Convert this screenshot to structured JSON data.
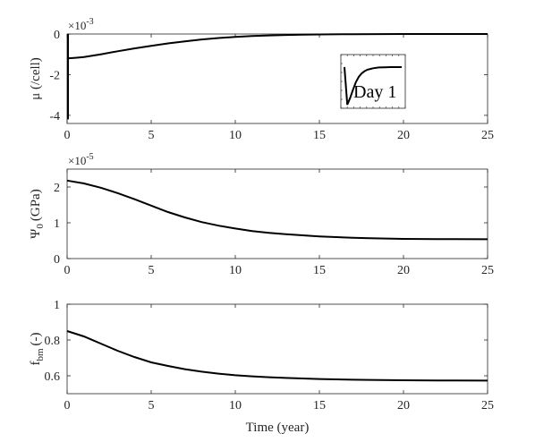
{
  "chart_data": [
    {
      "type": "line",
      "ylabel": "μ (/cell)",
      "multiplier": "×10",
      "exponent": "-3",
      "xlim": [
        0,
        25
      ],
      "ylim": [
        -4.4,
        0
      ],
      "x_ticks": [
        "0",
        "5",
        "10",
        "15",
        "20",
        "25"
      ],
      "y_ticks": [
        {
          "value": 0,
          "label": "0"
        },
        {
          "value": -2,
          "label": "-2"
        },
        {
          "value": -4,
          "label": "-4"
        }
      ],
      "series": [
        {
          "x": [
            0,
            0.5,
            1,
            2,
            3,
            4,
            5,
            6,
            7,
            8,
            9,
            10,
            11,
            12,
            13,
            14,
            15,
            17,
            20,
            25
          ],
          "y": [
            -1.2,
            -1.17,
            -1.13,
            -1.0,
            -0.85,
            -0.71,
            -0.58,
            -0.46,
            -0.36,
            -0.27,
            -0.2,
            -0.14,
            -0.1,
            -0.07,
            -0.05,
            -0.03,
            -0.02,
            -0.01,
            0,
            0
          ]
        }
      ],
      "initial_transient": {
        "x": 0,
        "y_from": -4.2,
        "y_to": 0
      },
      "inset": {
        "label": "Day 1",
        "series_x": [
          0,
          0.05,
          0.1,
          0.15,
          0.2,
          0.25,
          0.3,
          0.35,
          0.4,
          0.45,
          0.5,
          0.6,
          0.7,
          0.8,
          0.9,
          1.0
        ],
        "series_y": [
          0.0,
          -1.0,
          -0.82,
          -0.6,
          -0.4,
          -0.26,
          -0.17,
          -0.11,
          -0.07,
          -0.05,
          -0.03,
          -0.01,
          -0.005,
          0,
          0,
          0
        ]
      }
    },
    {
      "type": "line",
      "ylabel": "Ψ",
      "ylabel_sub": "0",
      "ylabel_unit": "(GPa)",
      "multiplier": "×10",
      "exponent": "-5",
      "xlim": [
        0,
        25
      ],
      "ylim": [
        0,
        2.5
      ],
      "x_ticks": [
        "0",
        "5",
        "10",
        "15",
        "20",
        "25"
      ],
      "y_ticks": [
        {
          "value": 0,
          "label": "0"
        },
        {
          "value": 1,
          "label": "1"
        },
        {
          "value": 2,
          "label": "2"
        }
      ],
      "series": [
        {
          "x": [
            0,
            1,
            2,
            3,
            4,
            5,
            6,
            7,
            8,
            9,
            10,
            11,
            12,
            13,
            14,
            15,
            16,
            17,
            18,
            19,
            20,
            22,
            25
          ],
          "y": [
            2.18,
            2.1,
            1.98,
            1.83,
            1.66,
            1.48,
            1.3,
            1.15,
            1.02,
            0.92,
            0.84,
            0.77,
            0.72,
            0.68,
            0.65,
            0.62,
            0.6,
            0.58,
            0.57,
            0.56,
            0.55,
            0.545,
            0.54
          ]
        }
      ]
    },
    {
      "type": "line",
      "ylabel": "f",
      "ylabel_sub": "bm",
      "ylabel_unit": "(-)",
      "xlabel": "Time (year)",
      "xlim": [
        0,
        25
      ],
      "ylim": [
        0.5,
        1.0
      ],
      "x_ticks": [
        "0",
        "5",
        "10",
        "15",
        "20",
        "25"
      ],
      "y_ticks": [
        {
          "value": 0.6,
          "label": "0.6"
        },
        {
          "value": 0.8,
          "label": "0.8"
        },
        {
          "value": 1.0,
          "label": "1"
        }
      ],
      "series": [
        {
          "x": [
            0,
            1,
            2,
            3,
            4,
            5,
            6,
            7,
            8,
            9,
            10,
            11,
            12,
            13,
            14,
            15,
            16,
            17,
            18,
            20,
            22,
            25
          ],
          "y": [
            0.85,
            0.82,
            0.78,
            0.74,
            0.705,
            0.675,
            0.655,
            0.637,
            0.623,
            0.612,
            0.603,
            0.597,
            0.592,
            0.588,
            0.585,
            0.582,
            0.58,
            0.578,
            0.577,
            0.575,
            0.574,
            0.573
          ]
        }
      ]
    }
  ]
}
